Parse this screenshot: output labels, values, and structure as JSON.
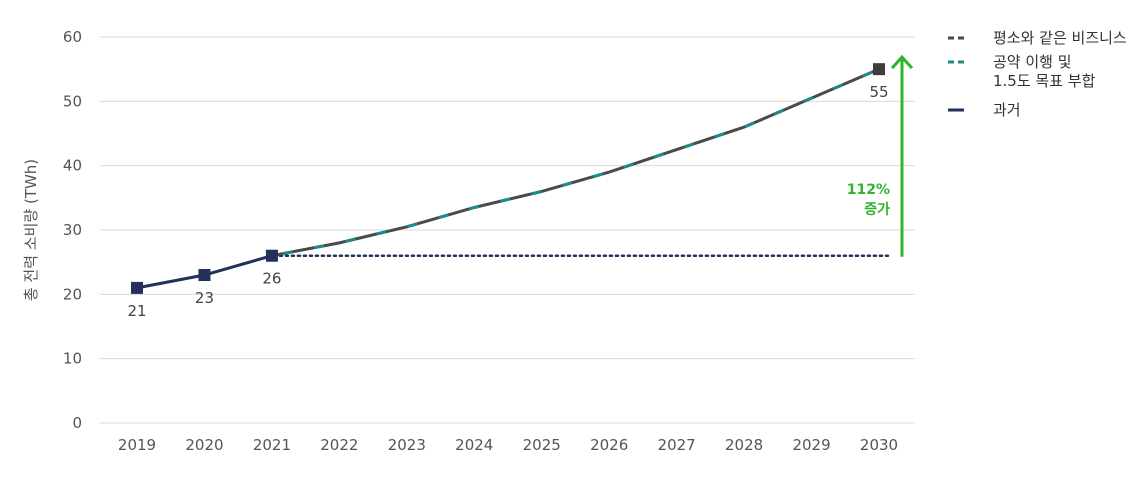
{
  "chart_data": {
    "type": "line",
    "title": "",
    "ylabel": "총 전력 소비량 (TWh)",
    "xlabel": "",
    "ylim": [
      0,
      60
    ],
    "yticks": [
      0,
      10,
      20,
      30,
      40,
      50,
      60
    ],
    "grid": true,
    "x": [
      2019,
      2020,
      2021,
      2022,
      2023,
      2024,
      2025,
      2026,
      2027,
      2028,
      2029,
      2030
    ],
    "legend_position": "top-right",
    "series": [
      {
        "name": "평소와 같은 비즈니스",
        "style": "dashed",
        "color": "#4a4a4a",
        "x": [
          2021,
          2022,
          2023,
          2024,
          2025,
          2026,
          2027,
          2028,
          2029,
          2030
        ],
        "values": [
          26,
          28,
          30.5,
          33.5,
          36,
          39,
          42.5,
          46,
          50.5,
          55
        ]
      },
      {
        "name": "공약 이행 및\n1.5도 목표 부합",
        "style": "dashed",
        "color": "#1a8c8c",
        "x": [
          2021,
          2022,
          2023,
          2024,
          2025,
          2026,
          2027,
          2028,
          2029,
          2030
        ],
        "values": [
          26,
          28,
          30.5,
          33.5,
          36,
          39,
          42.5,
          46,
          50.5,
          55
        ]
      },
      {
        "name": "과거",
        "style": "solid",
        "color": "#22305a",
        "x": [
          2019,
          2020,
          2021
        ],
        "values": [
          21,
          23,
          26
        ]
      }
    ],
    "data_labels": [
      {
        "x": 2019,
        "y": 21,
        "text": "21"
      },
      {
        "x": 2020,
        "y": 23,
        "text": "23"
      },
      {
        "x": 2021,
        "y": 26,
        "text": "26"
      },
      {
        "x": 2030,
        "y": 55,
        "text": "55"
      }
    ],
    "baseline": {
      "y": 26,
      "from": 2021,
      "to": 2030,
      "style": "dotted",
      "color": "#22305a"
    },
    "annotation": {
      "text_line1": "112%",
      "text_line2": "증가",
      "color": "#2db52d",
      "from": 26,
      "to": 55
    }
  }
}
